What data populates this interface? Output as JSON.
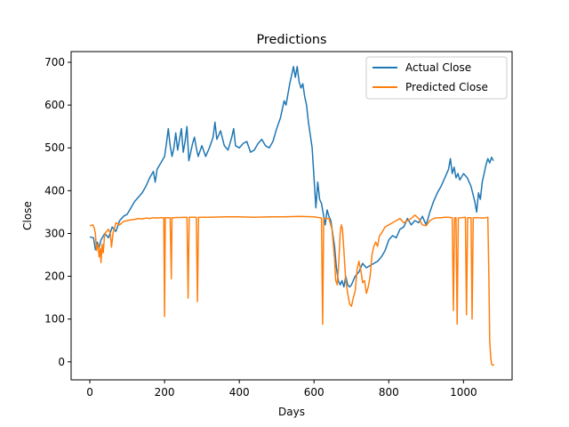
{
  "chart_data": {
    "type": "line",
    "title": "Predictions",
    "xlabel": "Days",
    "ylabel": "Close",
    "xlim": [
      -50,
      1130
    ],
    "ylim": [
      -42,
      725
    ],
    "xticks": [
      0,
      200,
      400,
      600,
      800,
      1000
    ],
    "yticks": [
      0,
      100,
      200,
      300,
      400,
      500,
      600,
      700
    ],
    "grid": false,
    "legend": "top-right",
    "series": [
      {
        "name": "Actual Close",
        "color": "#1f77b4",
        "points": [
          [
            0,
            292
          ],
          [
            10,
            290
          ],
          [
            15,
            262
          ],
          [
            20,
            280
          ],
          [
            25,
            268
          ],
          [
            30,
            285
          ],
          [
            40,
            300
          ],
          [
            50,
            290
          ],
          [
            60,
            315
          ],
          [
            70,
            305
          ],
          [
            80,
            330
          ],
          [
            90,
            340
          ],
          [
            100,
            345
          ],
          [
            110,
            360
          ],
          [
            120,
            375
          ],
          [
            130,
            385
          ],
          [
            140,
            395
          ],
          [
            150,
            410
          ],
          [
            160,
            430
          ],
          [
            170,
            445
          ],
          [
            175,
            420
          ],
          [
            180,
            450
          ],
          [
            190,
            465
          ],
          [
            200,
            480
          ],
          [
            205,
            510
          ],
          [
            210,
            545
          ],
          [
            215,
            505
          ],
          [
            220,
            480
          ],
          [
            225,
            500
          ],
          [
            230,
            535
          ],
          [
            235,
            495
          ],
          [
            240,
            520
          ],
          [
            245,
            545
          ],
          [
            250,
            490
          ],
          [
            255,
            515
          ],
          [
            260,
            550
          ],
          [
            265,
            470
          ],
          [
            270,
            490
          ],
          [
            275,
            510
          ],
          [
            280,
            525
          ],
          [
            285,
            500
          ],
          [
            290,
            480
          ],
          [
            300,
            505
          ],
          [
            310,
            480
          ],
          [
            320,
            500
          ],
          [
            330,
            525
          ],
          [
            335,
            560
          ],
          [
            340,
            520
          ],
          [
            350,
            540
          ],
          [
            360,
            505
          ],
          [
            370,
            495
          ],
          [
            380,
            525
          ],
          [
            385,
            545
          ],
          [
            390,
            505
          ],
          [
            400,
            500
          ],
          [
            410,
            510
          ],
          [
            420,
            515
          ],
          [
            430,
            490
          ],
          [
            440,
            495
          ],
          [
            450,
            510
          ],
          [
            460,
            520
          ],
          [
            470,
            505
          ],
          [
            480,
            500
          ],
          [
            490,
            515
          ],
          [
            500,
            545
          ],
          [
            510,
            570
          ],
          [
            520,
            610
          ],
          [
            525,
            600
          ],
          [
            530,
            625
          ],
          [
            535,
            650
          ],
          [
            540,
            670
          ],
          [
            545,
            690
          ],
          [
            550,
            665
          ],
          [
            555,
            690
          ],
          [
            560,
            655
          ],
          [
            565,
            640
          ],
          [
            570,
            650
          ],
          [
            575,
            620
          ],
          [
            580,
            600
          ],
          [
            585,
            560
          ],
          [
            590,
            530
          ],
          [
            595,
            500
          ],
          [
            600,
            430
          ],
          [
            605,
            360
          ],
          [
            610,
            420
          ],
          [
            615,
            380
          ],
          [
            620,
            370
          ],
          [
            625,
            345
          ],
          [
            630,
            320
          ],
          [
            635,
            355
          ],
          [
            640,
            340
          ],
          [
            645,
            330
          ],
          [
            650,
            300
          ],
          [
            655,
            270
          ],
          [
            660,
            220
          ],
          [
            665,
            190
          ],
          [
            670,
            180
          ],
          [
            675,
            190
          ],
          [
            680,
            175
          ],
          [
            685,
            200
          ],
          [
            690,
            180
          ],
          [
            695,
            175
          ],
          [
            700,
            180
          ],
          [
            710,
            200
          ],
          [
            720,
            210
          ],
          [
            730,
            230
          ],
          [
            740,
            220
          ],
          [
            750,
            225
          ],
          [
            760,
            230
          ],
          [
            770,
            235
          ],
          [
            780,
            245
          ],
          [
            790,
            260
          ],
          [
            800,
            285
          ],
          [
            810,
            295
          ],
          [
            820,
            290
          ],
          [
            830,
            310
          ],
          [
            840,
            315
          ],
          [
            850,
            335
          ],
          [
            860,
            320
          ],
          [
            870,
            330
          ],
          [
            880,
            325
          ],
          [
            890,
            340
          ],
          [
            900,
            320
          ],
          [
            910,
            350
          ],
          [
            920,
            375
          ],
          [
            930,
            395
          ],
          [
            940,
            410
          ],
          [
            950,
            430
          ],
          [
            960,
            450
          ],
          [
            965,
            475
          ],
          [
            970,
            440
          ],
          [
            975,
            455
          ],
          [
            980,
            430
          ],
          [
            985,
            440
          ],
          [
            990,
            425
          ],
          [
            1000,
            440
          ],
          [
            1010,
            430
          ],
          [
            1020,
            410
          ],
          [
            1030,
            375
          ],
          [
            1035,
            350
          ],
          [
            1040,
            395
          ],
          [
            1045,
            380
          ],
          [
            1050,
            420
          ],
          [
            1055,
            440
          ],
          [
            1060,
            460
          ],
          [
            1065,
            475
          ],
          [
            1070,
            465
          ],
          [
            1075,
            478
          ],
          [
            1080,
            470
          ]
        ]
      },
      {
        "name": "Predicted Close",
        "color": "#ff7f0e",
        "points": [
          [
            0,
            318
          ],
          [
            8,
            320
          ],
          [
            12,
            312
          ],
          [
            15,
            300
          ],
          [
            18,
            260
          ],
          [
            22,
            275
          ],
          [
            25,
            245
          ],
          [
            28,
            265
          ],
          [
            30,
            232
          ],
          [
            33,
            275
          ],
          [
            36,
            255
          ],
          [
            40,
            300
          ],
          [
            45,
            305
          ],
          [
            50,
            310
          ],
          [
            55,
            300
          ],
          [
            58,
            268
          ],
          [
            62,
            300
          ],
          [
            70,
            325
          ],
          [
            80,
            320
          ],
          [
            90,
            328
          ],
          [
            100,
            330
          ],
          [
            110,
            332
          ],
          [
            120,
            333
          ],
          [
            130,
            335
          ],
          [
            140,
            334
          ],
          [
            150,
            336
          ],
          [
            160,
            335
          ],
          [
            170,
            337
          ],
          [
            180,
            336
          ],
          [
            190,
            337
          ],
          [
            198,
            337
          ],
          [
            200,
            106
          ],
          [
            202,
            337
          ],
          [
            215,
            337
          ],
          [
            218,
            194
          ],
          [
            220,
            337
          ],
          [
            260,
            338
          ],
          [
            263,
            149
          ],
          [
            266,
            338
          ],
          [
            285,
            338
          ],
          [
            288,
            141
          ],
          [
            291,
            338
          ],
          [
            320,
            338
          ],
          [
            360,
            339
          ],
          [
            400,
            339
          ],
          [
            440,
            338
          ],
          [
            480,
            339
          ],
          [
            520,
            339
          ],
          [
            560,
            340
          ],
          [
            600,
            339
          ],
          [
            620,
            336
          ],
          [
            623,
            88
          ],
          [
            626,
            335
          ],
          [
            640,
            335
          ],
          [
            648,
            310
          ],
          [
            652,
            270
          ],
          [
            655,
            240
          ],
          [
            658,
            190
          ],
          [
            662,
            180
          ],
          [
            666,
            230
          ],
          [
            670,
            300
          ],
          [
            673,
            320
          ],
          [
            676,
            310
          ],
          [
            680,
            260
          ],
          [
            685,
            190
          ],
          [
            690,
            160
          ],
          [
            695,
            135
          ],
          [
            700,
            130
          ],
          [
            705,
            150
          ],
          [
            710,
            165
          ],
          [
            715,
            215
          ],
          [
            720,
            235
          ],
          [
            725,
            215
          ],
          [
            730,
            185
          ],
          [
            735,
            190
          ],
          [
            740,
            160
          ],
          [
            745,
            175
          ],
          [
            750,
            200
          ],
          [
            755,
            250
          ],
          [
            760,
            270
          ],
          [
            765,
            280
          ],
          [
            770,
            270
          ],
          [
            775,
            295
          ],
          [
            780,
            300
          ],
          [
            790,
            315
          ],
          [
            800,
            320
          ],
          [
            810,
            325
          ],
          [
            820,
            330
          ],
          [
            830,
            335
          ],
          [
            840,
            325
          ],
          [
            850,
            330
          ],
          [
            860,
            335
          ],
          [
            870,
            343
          ],
          [
            880,
            335
          ],
          [
            890,
            320
          ],
          [
            900,
            318
          ],
          [
            910,
            330
          ],
          [
            920,
            335
          ],
          [
            930,
            337
          ],
          [
            940,
            337
          ],
          [
            950,
            338
          ],
          [
            960,
            338
          ],
          [
            970,
            337
          ],
          [
            973,
            120
          ],
          [
            976,
            337
          ],
          [
            980,
            337
          ],
          [
            983,
            88
          ],
          [
            986,
            336
          ],
          [
            1005,
            338
          ],
          [
            1008,
            110
          ],
          [
            1011,
            337
          ],
          [
            1020,
            337
          ],
          [
            1023,
            100
          ],
          [
            1026,
            337
          ],
          [
            1040,
            337
          ],
          [
            1055,
            336
          ],
          [
            1065,
            338
          ],
          [
            1068,
            200
          ],
          [
            1070,
            50
          ],
          [
            1073,
            10
          ],
          [
            1075,
            -5
          ],
          [
            1078,
            -8
          ],
          [
            1082,
            -7
          ]
        ]
      }
    ]
  }
}
